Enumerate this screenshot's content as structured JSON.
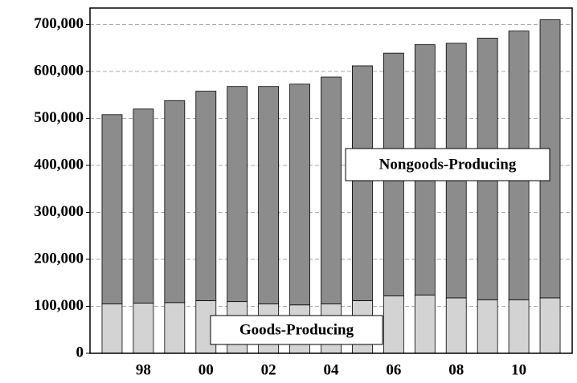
{
  "chart_data": {
    "type": "stacked_bar",
    "categories": [
      null,
      "98",
      null,
      "00",
      null,
      "02",
      null,
      "04",
      null,
      "06",
      null,
      "08",
      null,
      "10",
      null
    ],
    "series": [
      {
        "name": "Goods-Producing",
        "color": "#d3d3d3",
        "values": [
          105000,
          107000,
          108000,
          112000,
          110000,
          105000,
          103000,
          105000,
          112000,
          122000,
          124000,
          118000,
          114000,
          114000,
          118000
        ]
      },
      {
        "name": "Nongoods-Producing",
        "color": "#8c8c8c",
        "values": [
          403000,
          413000,
          430000,
          446000,
          458000,
          463000,
          470000,
          483000,
          500000,
          517000,
          533000,
          542000,
          557000,
          572000,
          592000
        ]
      }
    ],
    "ylim": [
      0,
      735000
    ],
    "yticks": [
      0,
      {
        "value": 100000,
        "label": "100,000"
      },
      {
        "value": 200000,
        "label": "200,000"
      },
      {
        "value": 300000,
        "label": "300,000"
      },
      {
        "value": 400000,
        "label": "400,000"
      },
      {
        "value": 500000,
        "label": "500,000"
      },
      {
        "value": 600000,
        "label": "600,000"
      },
      {
        "value": 700000,
        "label": "700,000"
      }
    ],
    "grid": true
  }
}
